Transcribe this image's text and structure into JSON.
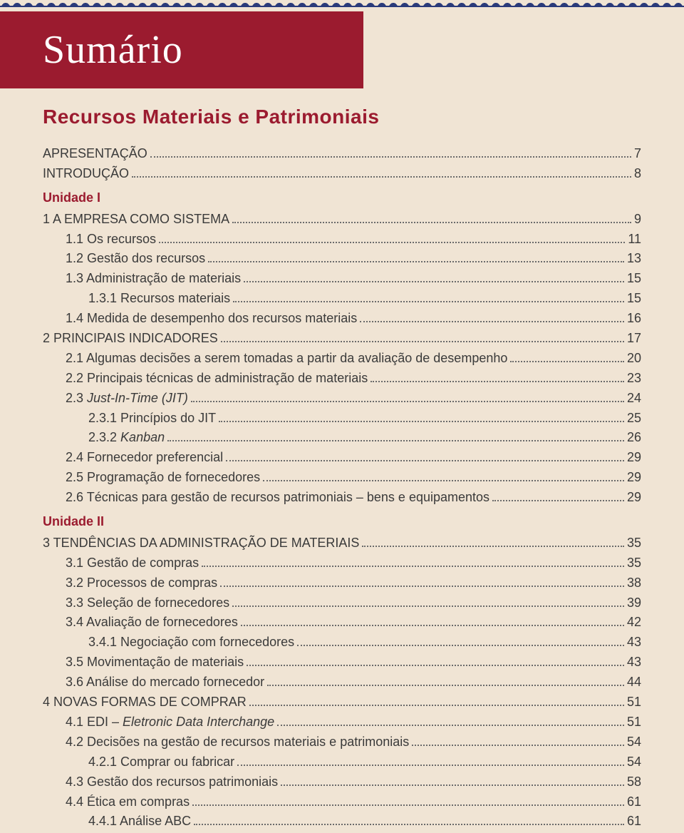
{
  "title": "Sumário",
  "subtitle": "Recursos Materiais e Patrimoniais",
  "colors": {
    "page_bg": "#f0e4d4",
    "title_bg": "#9b1b2f",
    "title_text": "#ffffff",
    "accent": "#9b1b2f",
    "body_text": "#3a3a3a",
    "wave": "#2a3a7a",
    "dots": "#6b6b6b"
  },
  "typography": {
    "title_family": "Georgia serif",
    "title_size_pt": 42,
    "subtitle_size_pt": 21,
    "body_size_pt": 13.5
  },
  "toc": [
    {
      "type": "entry",
      "indent": 0,
      "label": "APRESENTAÇÃO",
      "page": "7"
    },
    {
      "type": "entry",
      "indent": 0,
      "label": "INTRODUÇÃO",
      "page": "8"
    },
    {
      "type": "heading",
      "label": "Unidade I"
    },
    {
      "type": "entry",
      "indent": 0,
      "label": "1 A EMPRESA COMO SISTEMA",
      "page": "9"
    },
    {
      "type": "entry",
      "indent": 1,
      "label": "1.1 Os recursos",
      "page": "11"
    },
    {
      "type": "entry",
      "indent": 1,
      "label": "1.2 Gestão dos recursos",
      "page": "13"
    },
    {
      "type": "entry",
      "indent": 1,
      "label": "1.3 Administração de materiais",
      "page": "15"
    },
    {
      "type": "entry",
      "indent": 2,
      "label": "1.3.1 Recursos materiais",
      "page": "15"
    },
    {
      "type": "entry",
      "indent": 1,
      "label": "1.4 Medida de desempenho dos recursos materiais",
      "page": "16"
    },
    {
      "type": "entry",
      "indent": 0,
      "label": "2 PRINCIPAIS INDICADORES",
      "page": "17"
    },
    {
      "type": "entry",
      "indent": 1,
      "label": "2.1 Algumas decisões a serem tomadas a partir da avaliação de desempenho",
      "page": "20"
    },
    {
      "type": "entry",
      "indent": 1,
      "label": "2.2 Principais técnicas de administração de materiais",
      "page": "23"
    },
    {
      "type": "entry",
      "indent": 1,
      "label": "2.3 ",
      "italic_tail": "Just-In-Time (JIT)",
      "page": "24"
    },
    {
      "type": "entry",
      "indent": 2,
      "label": "2.3.1 Princípios do JIT",
      "page": "25"
    },
    {
      "type": "entry",
      "indent": 2,
      "label": "2.3.2 ",
      "italic_tail": "Kanban",
      "page": "26"
    },
    {
      "type": "entry",
      "indent": 1,
      "label": "2.4 Fornecedor preferencial",
      "page": "29"
    },
    {
      "type": "entry",
      "indent": 1,
      "label": "2.5 Programação de fornecedores",
      "page": "29"
    },
    {
      "type": "entry",
      "indent": 1,
      "label": "2.6 Técnicas para gestão de recursos patrimoniais – bens e equipamentos",
      "page": "29"
    },
    {
      "type": "heading",
      "label": "Unidade II"
    },
    {
      "type": "entry",
      "indent": 0,
      "label": "3 TENDÊNCIAS DA ADMINISTRAÇÃO DE MATERIAIS",
      "page": "35"
    },
    {
      "type": "entry",
      "indent": 1,
      "label": "3.1 Gestão de compras",
      "page": "35"
    },
    {
      "type": "entry",
      "indent": 1,
      "label": "3.2 Processos de compras",
      "page": "38"
    },
    {
      "type": "entry",
      "indent": 1,
      "label": "3.3 Seleção de fornecedores",
      "page": "39"
    },
    {
      "type": "entry",
      "indent": 1,
      "label": "3.4 Avaliação de fornecedores",
      "page": "42"
    },
    {
      "type": "entry",
      "indent": 2,
      "label": "3.4.1 Negociação com fornecedores",
      "page": "43"
    },
    {
      "type": "entry",
      "indent": 1,
      "label": "3.5 Movimentação de materiais",
      "page": "43"
    },
    {
      "type": "entry",
      "indent": 1,
      "label": "3.6 Análise do mercado fornecedor",
      "page": "44"
    },
    {
      "type": "entry",
      "indent": 0,
      "label": "4 NOVAS FORMAS DE COMPRAR",
      "page": "51"
    },
    {
      "type": "entry",
      "indent": 1,
      "label": "4.1 EDI – ",
      "italic_tail": "Eletronic Data Interchange",
      "page": "51"
    },
    {
      "type": "entry",
      "indent": 1,
      "label": "4.2 Decisões na gestão de recursos materiais e patrimoniais",
      "page": "54"
    },
    {
      "type": "entry",
      "indent": 2,
      "label": "4.2.1 Comprar ou fabricar",
      "page": "54"
    },
    {
      "type": "entry",
      "indent": 1,
      "label": "4.3 Gestão dos recursos patrimoniais",
      "page": "58"
    },
    {
      "type": "entry",
      "indent": 1,
      "label": "4.4 Ética em compras",
      "page": "61"
    },
    {
      "type": "entry",
      "indent": 2,
      "label": "4.4.1 Análise ABC",
      "page": "61"
    }
  ]
}
